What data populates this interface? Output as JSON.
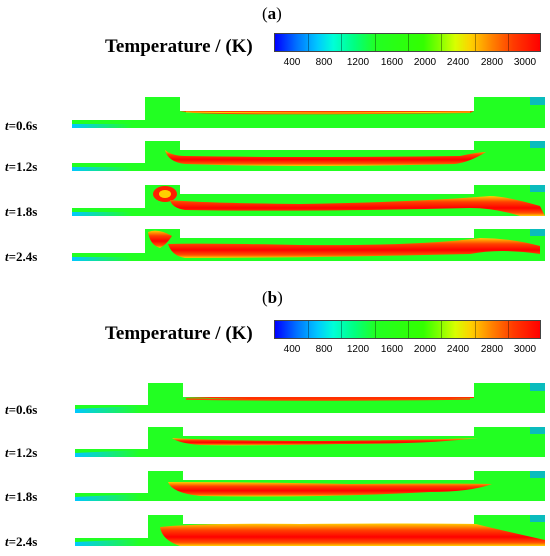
{
  "panel_a": {
    "label_open": "(",
    "label_letter": "a",
    "label_close": ")",
    "colorbar_title": "Temperature / (K)",
    "colorbar_ticks": [
      "400",
      "800",
      "1200",
      "1600",
      "2000",
      "2400",
      "2800",
      "3000"
    ],
    "rows": [
      {
        "t": "t",
        "rest": "=0.6s"
      },
      {
        "t": "t",
        "rest": "=1.2s"
      },
      {
        "t": "t",
        "rest": "=1.8s"
      },
      {
        "t": "t",
        "rest": "=2.4s"
      }
    ]
  },
  "panel_b": {
    "label_open": "(",
    "label_letter": "b",
    "label_close": ")",
    "colorbar_title": "Temperature / (K)",
    "colorbar_ticks": [
      "400",
      "800",
      "1200",
      "1600",
      "2000",
      "2400",
      "2800",
      "3000"
    ],
    "rows": [
      {
        "t": "t",
        "rest": "=0.6s"
      },
      {
        "t": "t",
        "rest": "=1.2s"
      },
      {
        "t": "t",
        "rest": "=1.8s"
      },
      {
        "t": "t",
        "rest": "=2.4s"
      }
    ]
  },
  "colors": {
    "background_gas": "#22ff22",
    "hot_core": "#ff0000",
    "mid": "#ffd000",
    "warm": "#ff8000",
    "cold_jet": "#00c8ff"
  }
}
